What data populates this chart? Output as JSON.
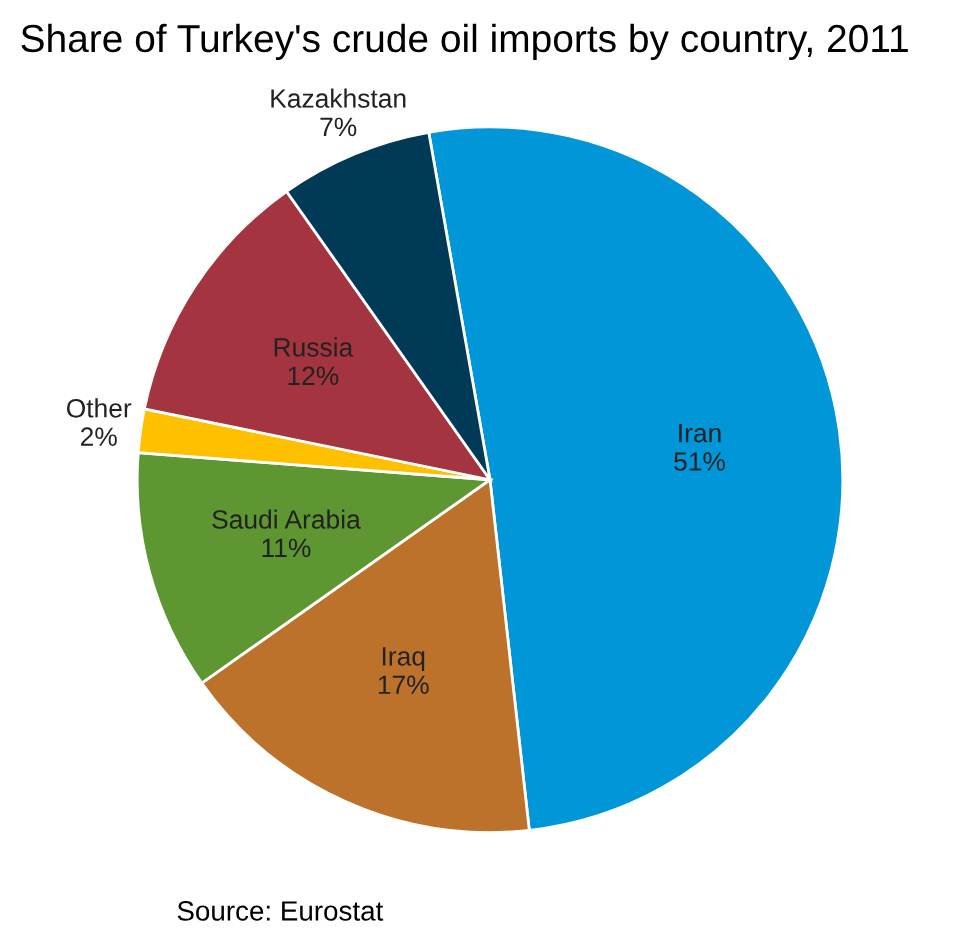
{
  "chart_data": {
    "type": "pie",
    "title": "Share of Turkey's crude oil imports by country, 2011",
    "categories": [
      "Iran",
      "Iraq",
      "Saudi Arabia",
      "Other",
      "Russia",
      "Kazakhstan"
    ],
    "values": [
      51,
      17,
      11,
      2,
      12,
      7
    ],
    "colors": [
      "#0096d7",
      "#bd722b",
      "#5e9732",
      "#ffc000",
      "#a4343f",
      "#003a57"
    ],
    "value_labels": [
      "51%",
      "17%",
      "11%",
      "2%",
      "12%",
      "7%"
    ],
    "annotations": [
      "Source: Eurostat"
    ],
    "legend": false
  }
}
